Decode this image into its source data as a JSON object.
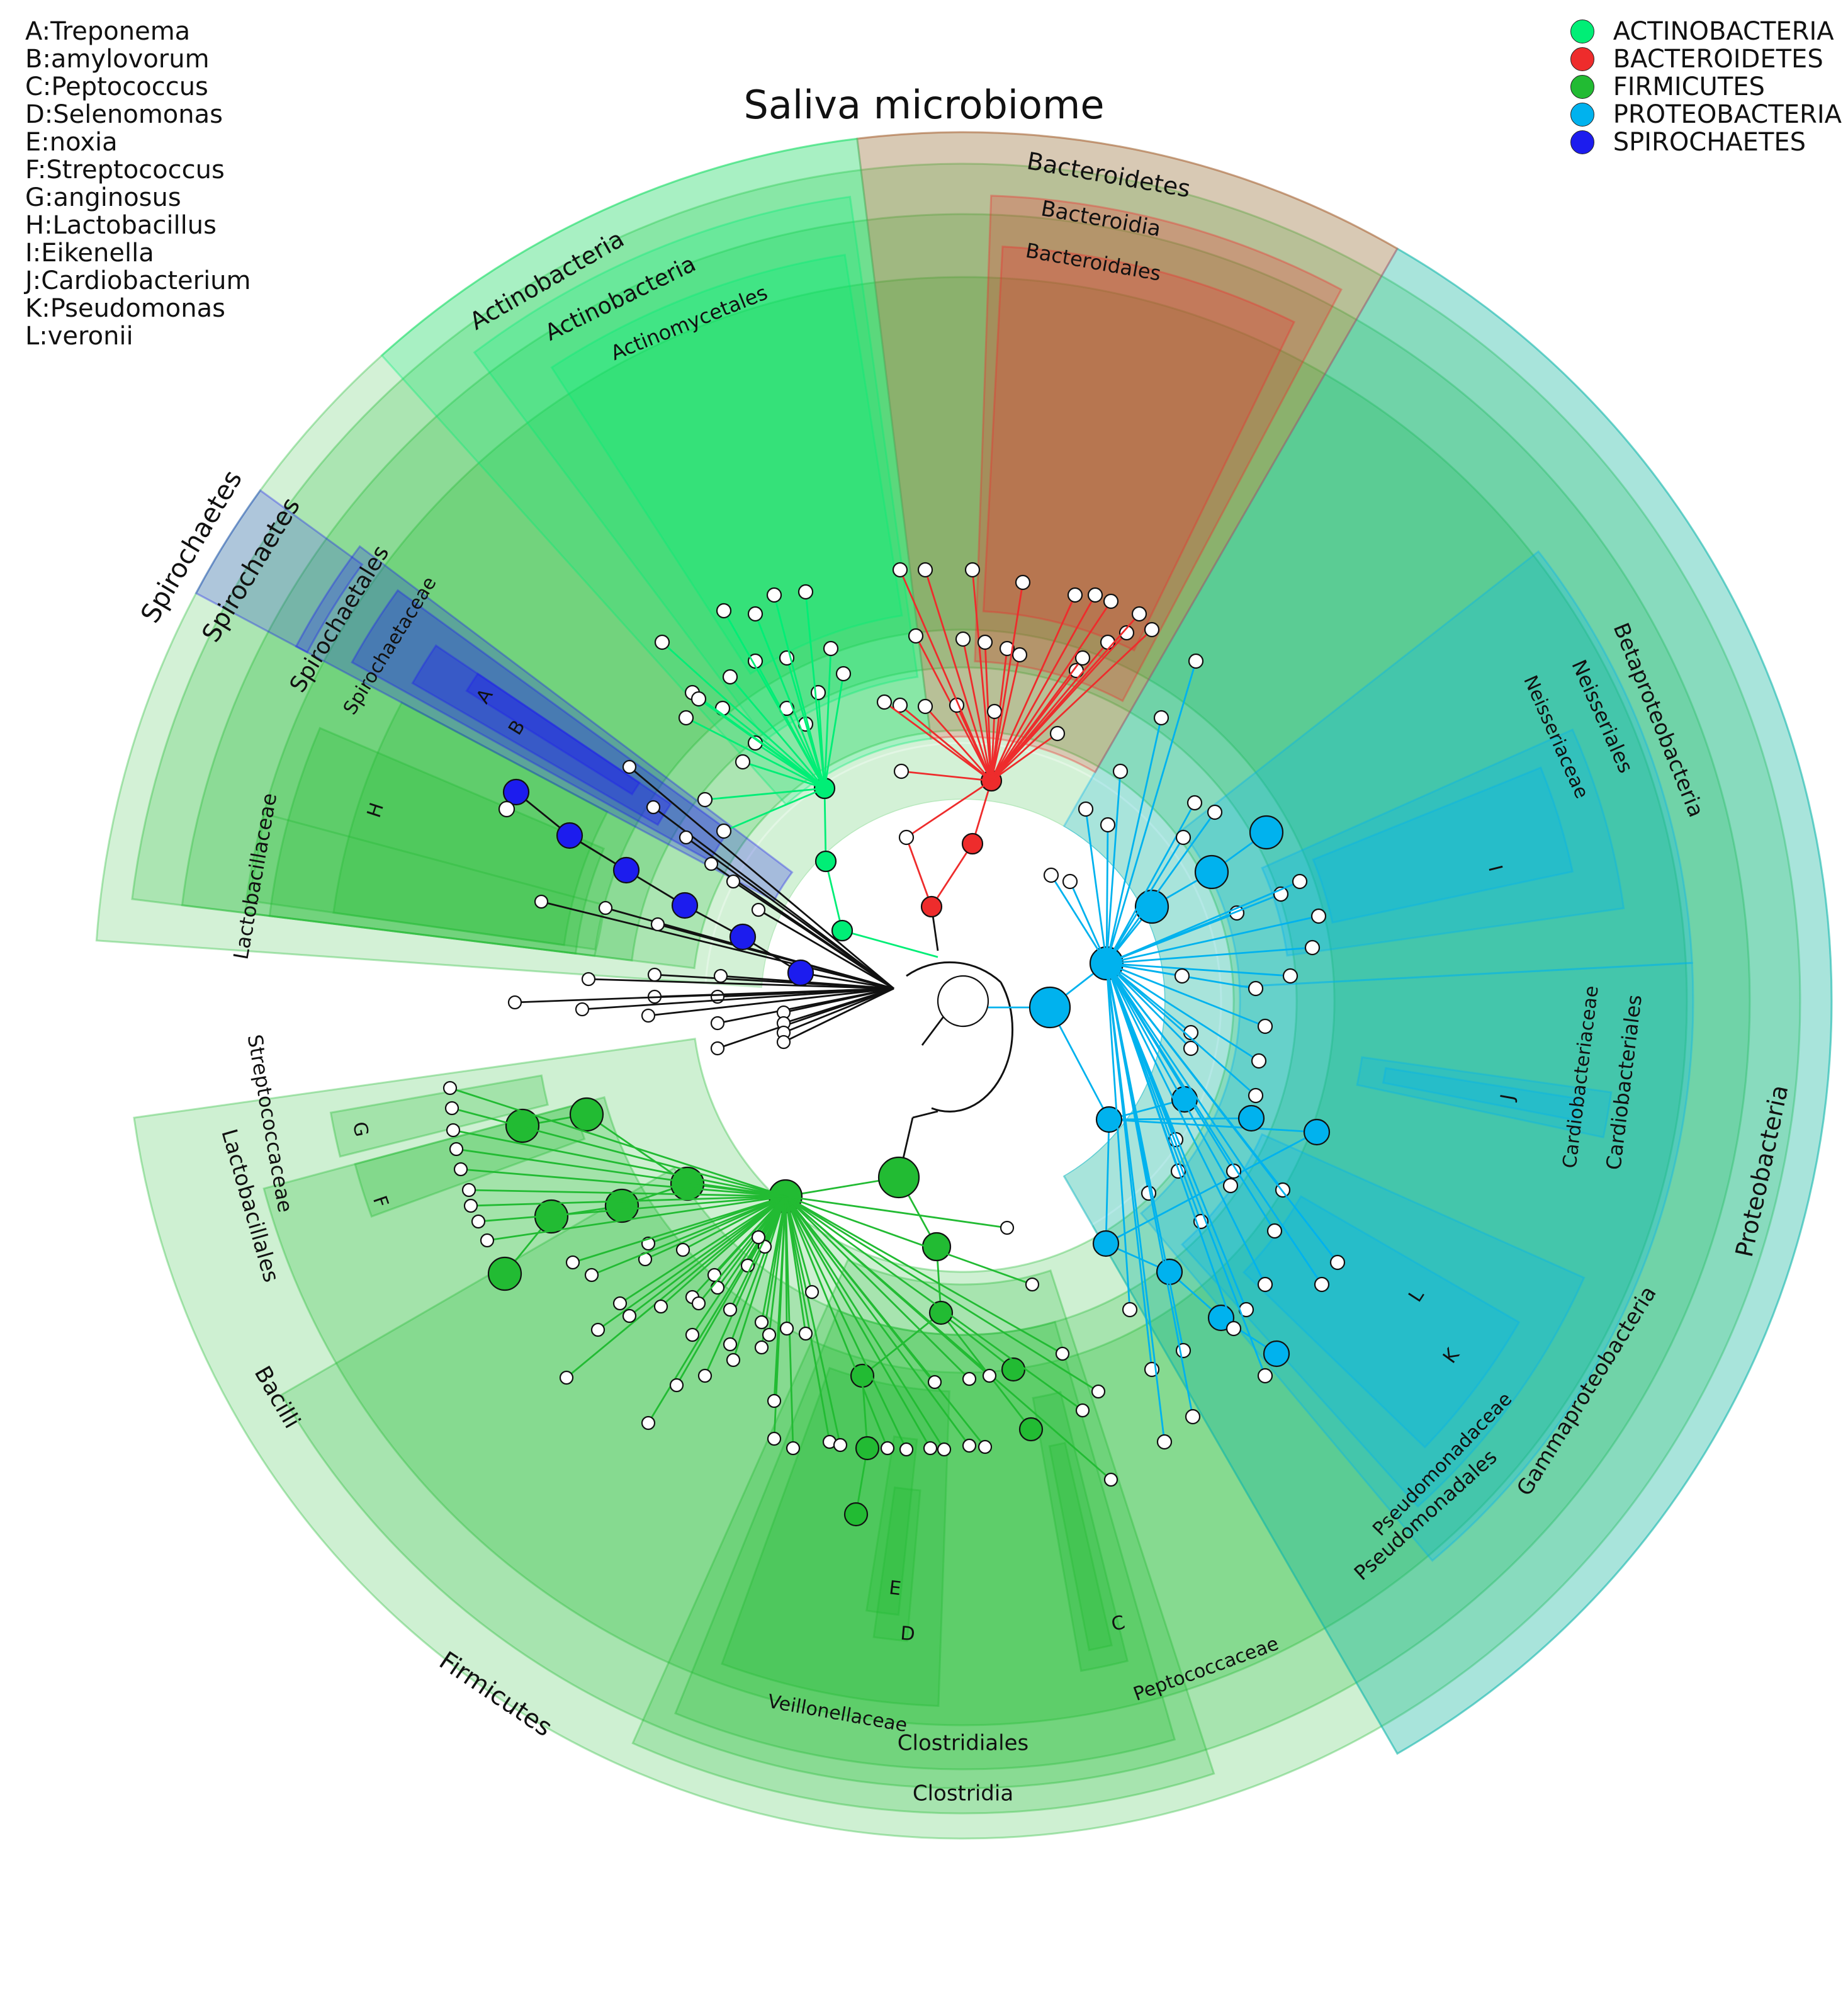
{
  "title": "Saliva microbiome",
  "abbreviations": [
    "A:Treponema",
    "B:amylovorum",
    "C:Peptococcus",
    "D:Selenomonas",
    "E:noxia",
    "F:Streptococcus",
    "G:anginosus",
    "H:Lactobacillus",
    "I:Eikenella",
    "J:Cardiobacterium",
    "K:Pseudomonas",
    "L:veronii"
  ],
  "legend": [
    {
      "label": "ACTINOBACTERIA",
      "color": "#00ee76"
    },
    {
      "label": "BACTEROIDETES",
      "color": "#ee2c2c"
    },
    {
      "label": "FIRMICUTES",
      "color": "#22bb33"
    },
    {
      "label": "PROTEOBACTERIA",
      "color": "#00b2ee"
    },
    {
      "label": "SPIROCHAETES",
      "color": "#1c1cee"
    }
  ],
  "clades": {
    "phylum": [
      "Spirochaetes",
      "Actinobacteria",
      "Bacteroidetes",
      "Proteobacteria",
      "Firmicutes"
    ],
    "class": [
      "Spirochaetes",
      "Actinobacteria",
      "Bacteroidia",
      "Betaproteobacteria",
      "Gammaproteobacteria",
      "Bacilli",
      "Clostridia"
    ],
    "order": [
      "Spirochaetales",
      "Actinomycetales",
      "Bacteroidales",
      "Neisseriales",
      "Cardiobacteriales",
      "Pseudomonadales",
      "Lactobacillales",
      "Clostridiales"
    ],
    "family": [
      "Spirochaetaceae",
      "Neisseriaceae",
      "Cardiobacteriaceae",
      "Pseudomonadaceae",
      "Lactobacillaceae",
      "Streptococcaceae",
      "Veillonellaceae",
      "Peptococcaceae"
    ],
    "letters": [
      "A",
      "B",
      "C",
      "D",
      "E",
      "F",
      "G",
      "H",
      "I",
      "J",
      "K",
      "L"
    ]
  }
}
